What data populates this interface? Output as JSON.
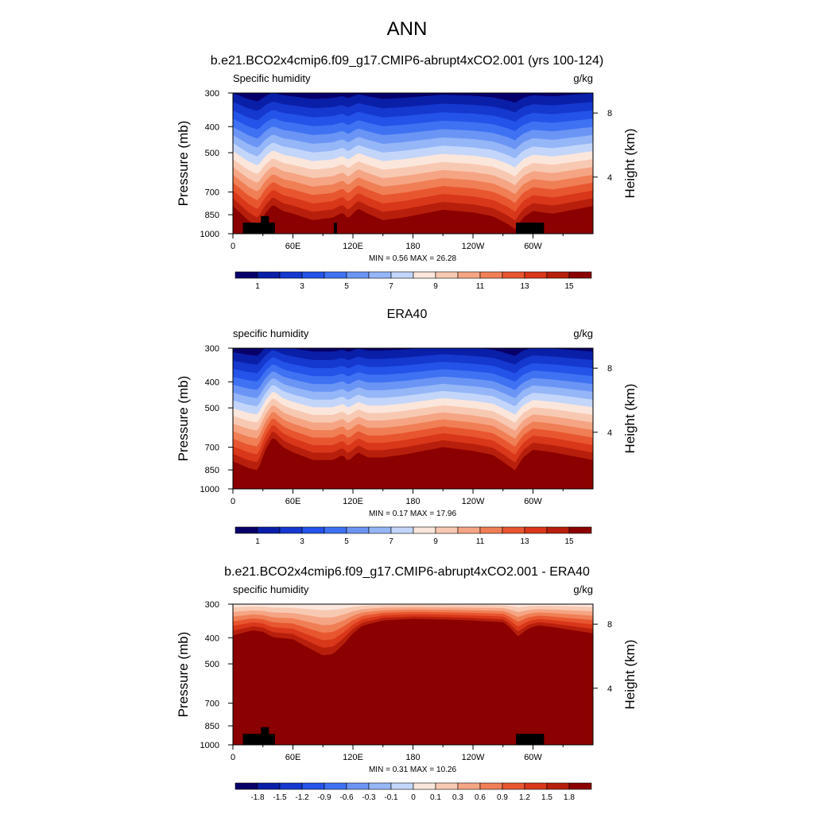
{
  "title": "ANN",
  "chart_data": [
    {
      "type": "heatmap",
      "title": "b.e21.BCO2x4cmip6.f09_g17.CMIP6-abrupt4xCO2.001 (yrs 100-124)",
      "left_label": "Specific humidity",
      "right_label": "g/kg",
      "ylabel": "Pressure (mb)",
      "ylabel_right": "Height (km)",
      "stats": "MIN =   0.56  MAX =  26.28",
      "x_ticks": [
        "0",
        "60E",
        "120E",
        "180",
        "120W",
        "60W"
      ],
      "y_ticks": [
        "300",
        "400",
        "500",
        "700",
        "850",
        "1000"
      ],
      "y_right_ticks": [
        "8",
        "4"
      ],
      "colorbar_labels": [
        "1",
        "3",
        "5",
        "7",
        "9",
        "11",
        "13",
        "15"
      ],
      "colorbar_levels": [
        0,
        1,
        2,
        3,
        4,
        5,
        6,
        7,
        8,
        9,
        10,
        11,
        12,
        13,
        14,
        15,
        16
      ],
      "surface_level": 15.6,
      "profile": {
        "x_deg": [
          0,
          15,
          25,
          32,
          40,
          50,
          60,
          80,
          100,
          110,
          115,
          125,
          135,
          150,
          170,
          190,
          210,
          240,
          260,
          275,
          282,
          290,
          300,
          320,
          340,
          360
        ],
        "depth": [
          -0.06,
          0.05,
          0.1,
          0.0,
          -0.07,
          -0.02,
          0.0,
          0.05,
          0.03,
          -0.01,
          0.04,
          -0.04,
          0.0,
          0.05,
          0.03,
          0.0,
          -0.03,
          -0.01,
          0.02,
          0.08,
          0.12,
          0.03,
          -0.02,
          0.0,
          -0.03,
          -0.06
        ]
      },
      "terrain": [
        {
          "lon": [
            10,
            42
          ],
          "p_top": 910
        },
        {
          "lon": [
            28,
            36
          ],
          "p_top": 860
        },
        {
          "lon": [
            101,
            104
          ],
          "p_top": 910
        },
        {
          "lon": [
            283,
            311
          ],
          "p_top": 910
        }
      ]
    },
    {
      "type": "heatmap",
      "title": "ERA40",
      "left_label": "specific humidity",
      "right_label": "g/kg",
      "ylabel": "Pressure (mb)",
      "ylabel_right": "Height (km)",
      "stats": "MIN =   0.17  MAX =  17.96",
      "x_ticks": [
        "0",
        "60E",
        "120E",
        "180",
        "120W",
        "60W"
      ],
      "y_ticks": [
        "300",
        "400",
        "500",
        "700",
        "850",
        "1000"
      ],
      "y_right_ticks": [
        "8",
        "4"
      ],
      "colorbar_labels": [
        "1",
        "3",
        "5",
        "7",
        "9",
        "11",
        "13",
        "15"
      ],
      "colorbar_levels": [
        0,
        1,
        2,
        3,
        4,
        5,
        6,
        7,
        8,
        9,
        10,
        11,
        12,
        13,
        14,
        15,
        16
      ],
      "surface_level": 14.2,
      "profile": {
        "x_deg": [
          0,
          15,
          25,
          32,
          40,
          50,
          60,
          80,
          100,
          110,
          115,
          125,
          135,
          150,
          170,
          190,
          210,
          240,
          260,
          275,
          282,
          290,
          300,
          320,
          340,
          360
        ],
        "depth": [
          0.03,
          0.08,
          0.1,
          -0.05,
          -0.16,
          -0.08,
          -0.04,
          0.02,
          0.02,
          -0.02,
          0.03,
          -0.04,
          0.0,
          0.0,
          -0.02,
          -0.05,
          -0.08,
          -0.05,
          -0.02,
          0.06,
          0.1,
          0.0,
          -0.06,
          -0.04,
          -0.01,
          0.02
        ]
      },
      "terrain": []
    },
    {
      "type": "heatmap",
      "title": "b.e21.BCO2x4cmip6.f09_g17.CMIP6-abrupt4xCO2.001 - ERA40",
      "left_label": "specific humidity",
      "right_label": "g/kg",
      "ylabel": "Pressure (mb)",
      "ylabel_right": "Height (km)",
      "stats": "MIN =   0.31  MAX =  10.26",
      "x_ticks": [
        "0",
        "60E",
        "120E",
        "180",
        "120W",
        "60W"
      ],
      "y_ticks": [
        "300",
        "400",
        "500",
        "700",
        "850",
        "1000"
      ],
      "y_right_ticks": [
        "8",
        "4"
      ],
      "colorbar_labels": [
        "-1.8",
        "-1.5",
        "-1.2",
        "-0.9",
        "-0.6",
        "-0.3",
        "-0.1",
        "0",
        "0.1",
        "0.3",
        "0.6",
        "0.9",
        "1.2",
        "1.5",
        "1.8"
      ],
      "colorbar_levels": [
        -2.1,
        -1.8,
        -1.5,
        -1.2,
        -0.9,
        -0.6,
        -0.3,
        -0.1,
        0,
        0.1,
        0.3,
        0.6,
        0.9,
        1.2,
        1.5,
        1.8,
        2.1
      ],
      "boundary": {
        "x_deg": [
          0,
          20,
          30,
          40,
          60,
          80,
          90,
          100,
          110,
          120,
          130,
          150,
          180,
          210,
          240,
          270,
          275,
          285,
          295,
          305,
          320,
          340,
          360
        ],
        "p": [
          392,
          375,
          380,
          398,
          405,
          445,
          465,
          460,
          425,
          385,
          360,
          345,
          340,
          342,
          345,
          350,
          360,
          395,
          370,
          360,
          365,
          375,
          385
        ]
      },
      "terrain": [
        {
          "lon": [
            10,
            42
          ],
          "p_top": 910
        },
        {
          "lon": [
            28,
            36
          ],
          "p_top": 860
        },
        {
          "lon": [
            283,
            311
          ],
          "p_top": 910
        }
      ]
    }
  ],
  "colors": {
    "bg": "#ffffff",
    "terrain": "#000000",
    "palette": [
      "#08006a",
      "#0a1fa8",
      "#1538cf",
      "#2353e8",
      "#3f72f2",
      "#6b95f5",
      "#95b6f7",
      "#c3d6fa",
      "#fbe6dc",
      "#f8c9b2",
      "#f5a584",
      "#f07f56",
      "#e85630",
      "#d9371a",
      "#b71f0c",
      "#8b0000"
    ]
  }
}
